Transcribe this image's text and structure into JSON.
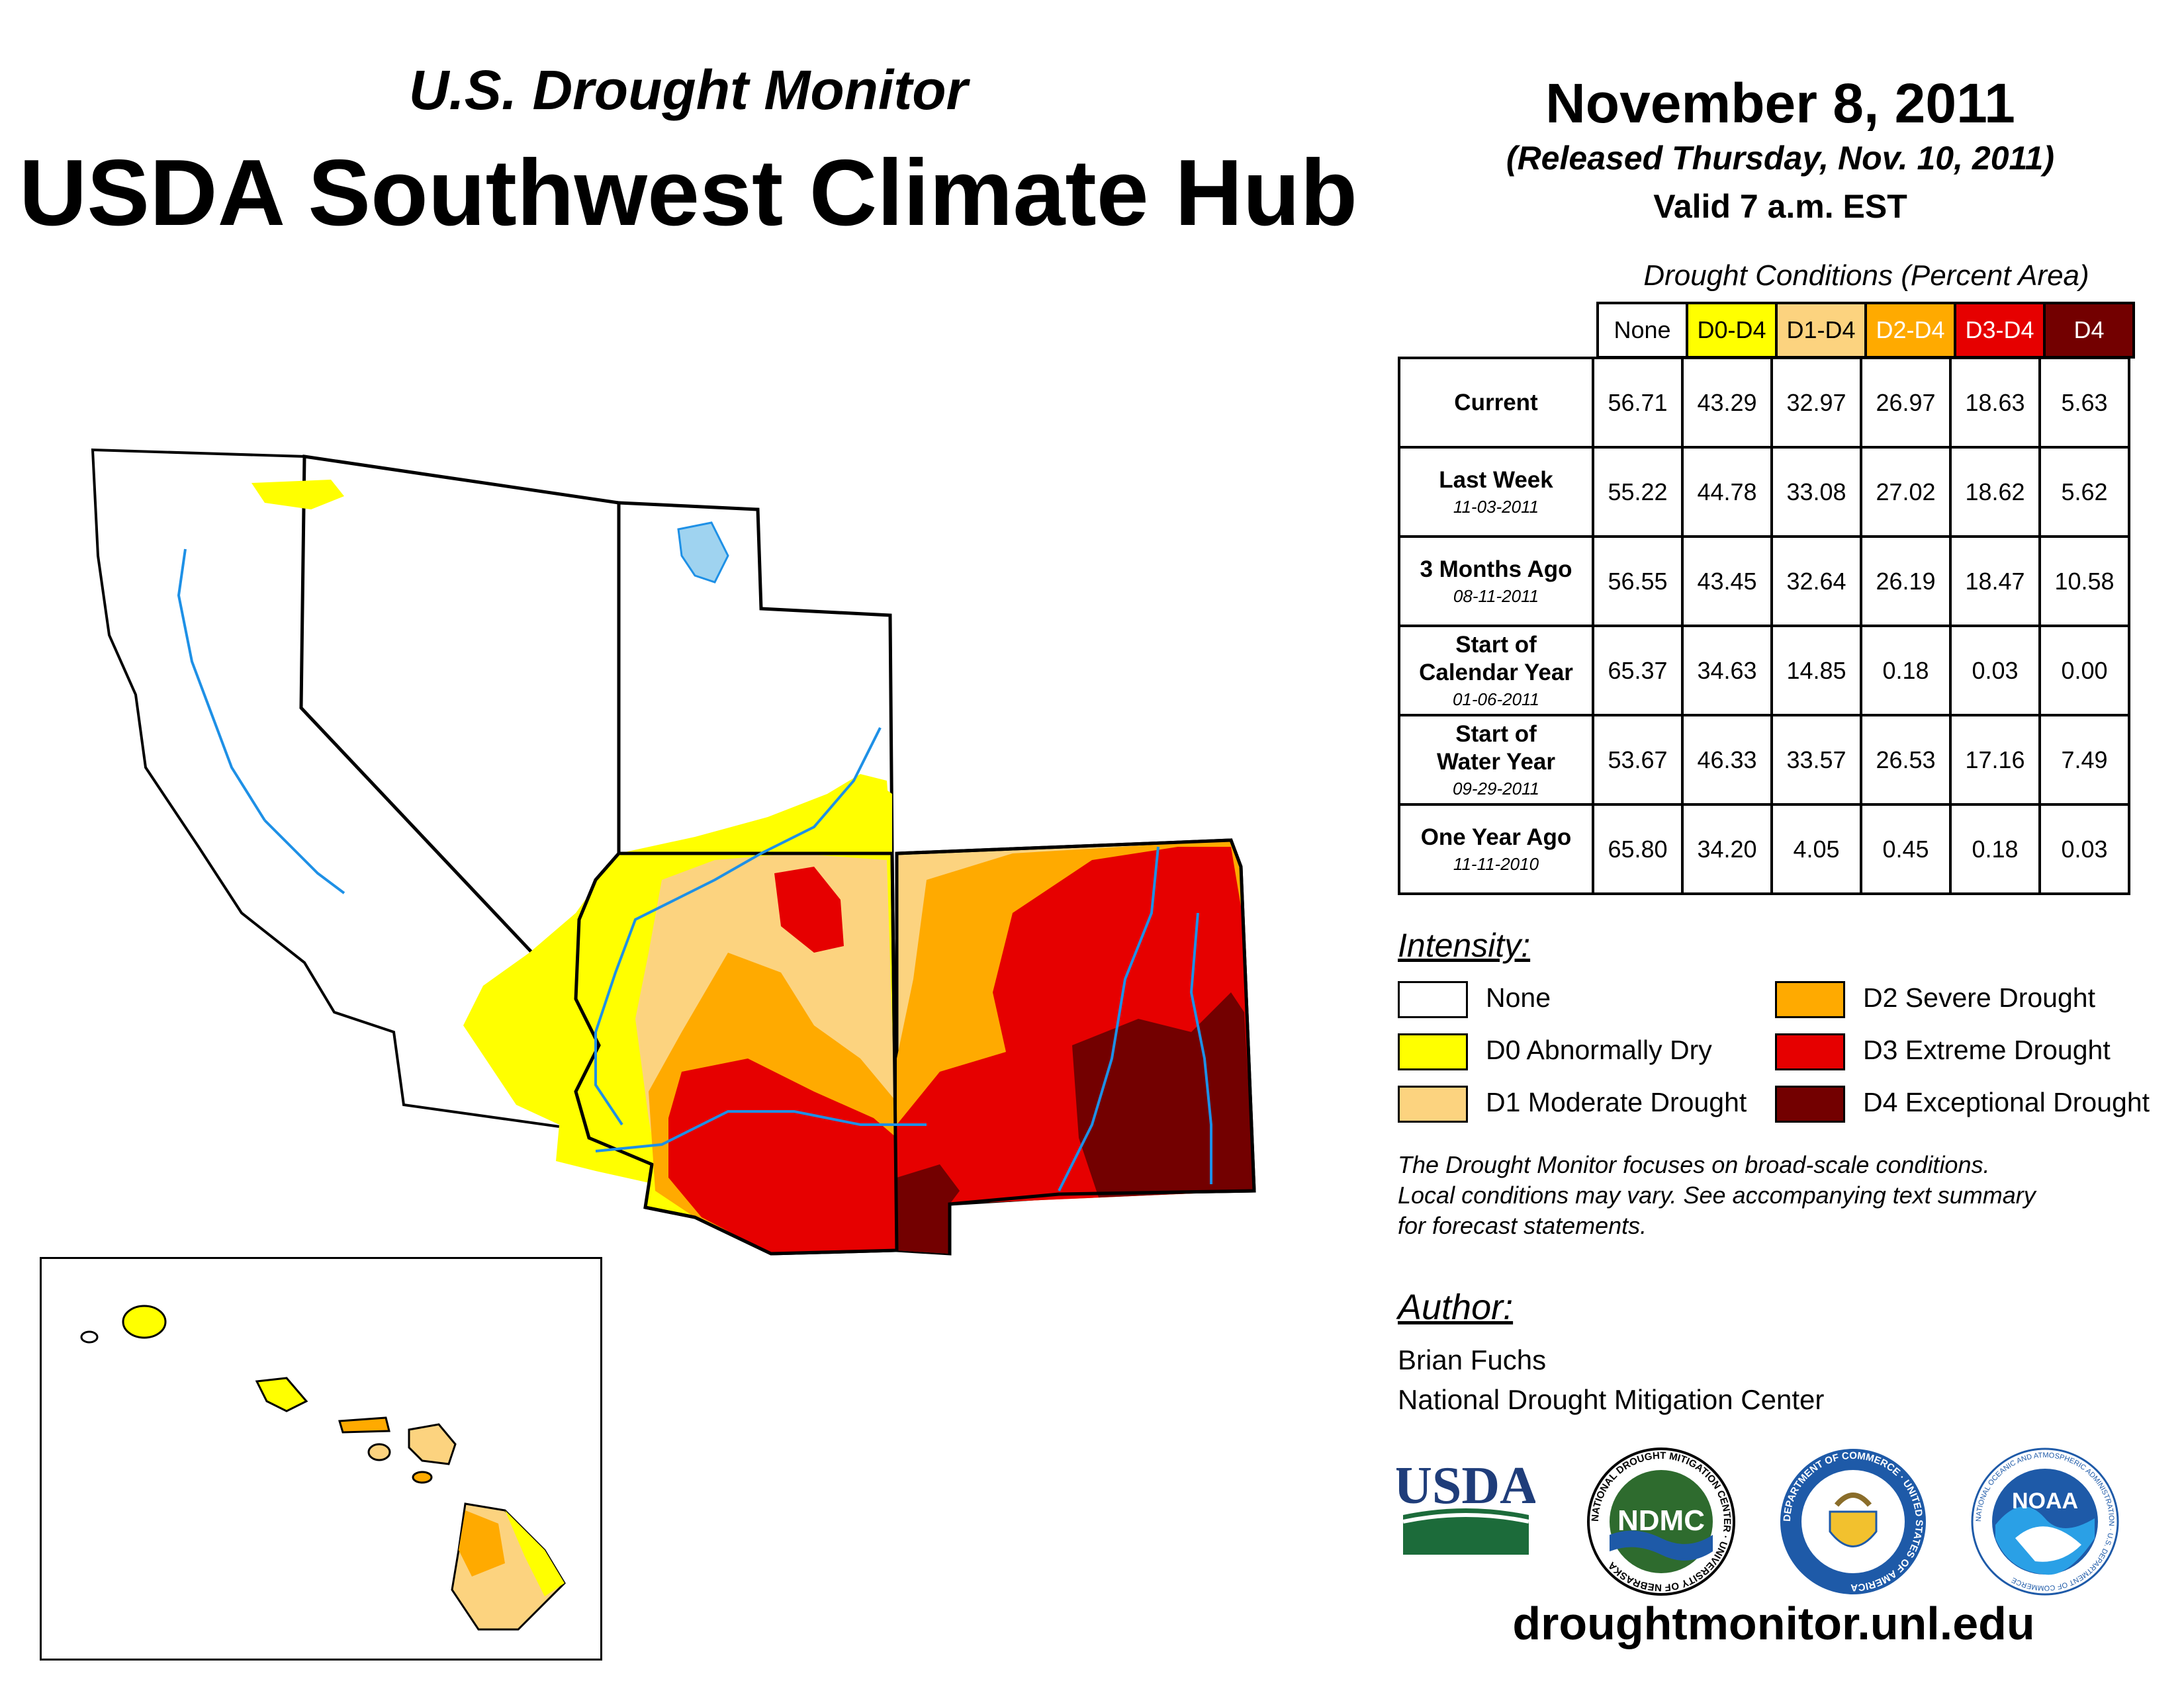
{
  "header": {
    "subtitle": "U.S. Drought Monitor",
    "title": "USDA Southwest Climate Hub",
    "date": "November 8, 2011",
    "released": "(Released Thursday, Nov. 10, 2011)",
    "valid": "Valid 7 a.m. EST"
  },
  "table": {
    "caption": "Drought Conditions (Percent Area)",
    "columns": [
      {
        "label": "None",
        "bg": "#ffffff",
        "fg": "#000000"
      },
      {
        "label": "D0-D4",
        "bg": "#ffff00",
        "fg": "#000000"
      },
      {
        "label": "D1-D4",
        "bg": "#fcd37f",
        "fg": "#000000"
      },
      {
        "label": "D2-D4",
        "bg": "#ffaa00",
        "fg": "#ffffff"
      },
      {
        "label": "D3-D4",
        "bg": "#e60000",
        "fg": "#ffffff"
      },
      {
        "label": "D4",
        "bg": "#730000",
        "fg": "#ffffff"
      }
    ],
    "rows": [
      {
        "label": [
          "Current"
        ],
        "date": "",
        "values": [
          "56.71",
          "43.29",
          "32.97",
          "26.97",
          "18.63",
          "5.63"
        ]
      },
      {
        "label": [
          "Last Week"
        ],
        "date": "11-03-2011",
        "values": [
          "55.22",
          "44.78",
          "33.08",
          "27.02",
          "18.62",
          "5.62"
        ]
      },
      {
        "label": [
          "3 Months Ago"
        ],
        "date": "08-11-2011",
        "values": [
          "56.55",
          "43.45",
          "32.64",
          "26.19",
          "18.47",
          "10.58"
        ]
      },
      {
        "label": [
          "Start of",
          "Calendar Year"
        ],
        "date": "01-06-2011",
        "values": [
          "65.37",
          "34.63",
          "14.85",
          "0.18",
          "0.03",
          "0.00"
        ]
      },
      {
        "label": [
          "Start of",
          "Water Year"
        ],
        "date": "09-29-2011",
        "values": [
          "53.67",
          "46.33",
          "33.57",
          "26.53",
          "17.16",
          "7.49"
        ]
      },
      {
        "label": [
          "One Year Ago"
        ],
        "date": "11-11-2010",
        "values": [
          "65.80",
          "34.20",
          "4.05",
          "0.45",
          "0.18",
          "0.03"
        ]
      }
    ]
  },
  "legend": {
    "title": "Intensity:",
    "items": [
      {
        "label": "None",
        "color": "#ffffff"
      },
      {
        "label": "D0 Abnormally Dry",
        "color": "#ffff00"
      },
      {
        "label": "D1 Moderate Drought",
        "color": "#fcd37f"
      },
      {
        "label": "D2 Severe Drought",
        "color": "#ffaa00"
      },
      {
        "label": "D3 Extreme Drought",
        "color": "#e60000"
      },
      {
        "label": "D4 Exceptional Drought",
        "color": "#730000"
      }
    ]
  },
  "disclaimer": [
    "The Drought Monitor focuses on broad-scale conditions.",
    "Local conditions may vary. See accompanying text summary",
    "for forecast statements."
  ],
  "author": {
    "title": "Author:",
    "name": "Brian Fuchs",
    "org": "National Drought Mitigation Center"
  },
  "logos": {
    "usda": "USDA",
    "ndmc": "NDMC",
    "ndmc_ring": "NATIONAL DROUGHT MITIGATION CENTER · UNIVERSITY OF NEBRASKA",
    "commerce_ring": "DEPARTMENT OF COMMERCE · UNITED STATES OF AMERICA",
    "noaa": "NOAA",
    "noaa_ring": "NATIONAL OCEANIC AND ATMOSPHERIC ADMINISTRATION · U.S. DEPARTMENT OF COMMERCE"
  },
  "website": "droughtmonitor.unl.edu",
  "map_colors": {
    "water": "#9fd3f0",
    "river": "#1e90e6"
  }
}
